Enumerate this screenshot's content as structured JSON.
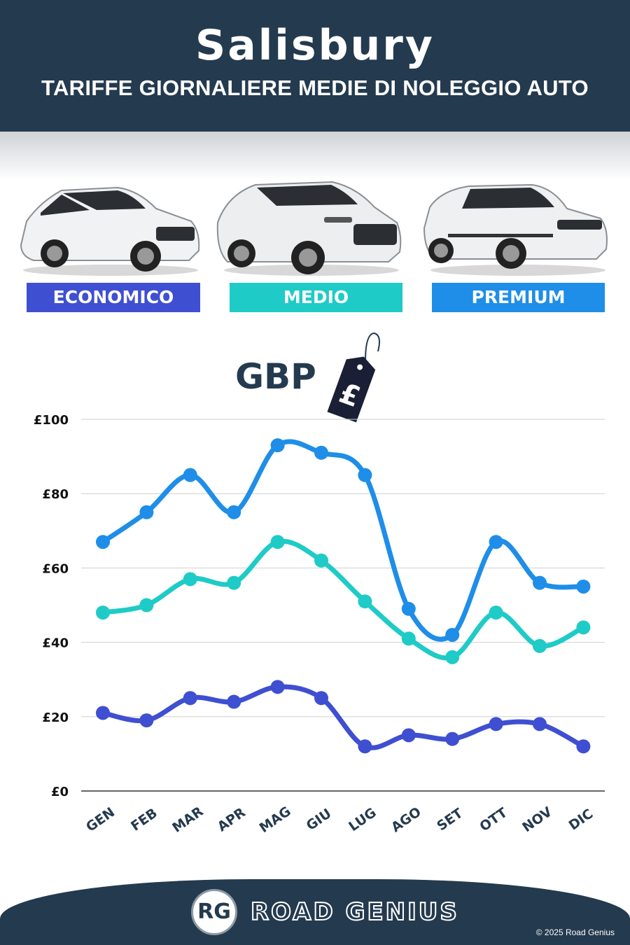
{
  "header": {
    "title": "Salisbury",
    "subtitle": "TARIFFE GIORNALIERE MEDIE DI NOLEGGIO AUTO"
  },
  "categories": [
    {
      "label": "ECONOMICO",
      "color": "#3f4fd1",
      "car_icon": "hatchback-car-icon"
    },
    {
      "label": "MEDIO",
      "color": "#1fcbc6",
      "car_icon": "suv-car-icon"
    },
    {
      "label": "PREMIUM",
      "color": "#1e8ee8",
      "car_icon": "luxury-suv-car-icon"
    }
  ],
  "currency": {
    "code": "GBP",
    "symbol": "£",
    "icon": "price-tag-icon"
  },
  "chart_data": {
    "type": "line",
    "categories": [
      "GEN",
      "FEB",
      "MAR",
      "APR",
      "MAG",
      "GIU",
      "LUG",
      "AGO",
      "SET",
      "OTT",
      "NOV",
      "DIC"
    ],
    "series": [
      {
        "name": "PREMIUM",
        "color": "#1e8ee8",
        "values": [
          67,
          75,
          85,
          75,
          93,
          91,
          85,
          49,
          42,
          67,
          56,
          55
        ]
      },
      {
        "name": "MEDIO",
        "color": "#1fcbc6",
        "values": [
          48,
          50,
          57,
          56,
          67,
          62,
          51,
          41,
          36,
          48,
          39,
          44
        ]
      },
      {
        "name": "ECONOMICO",
        "color": "#3f4fd1",
        "values": [
          21,
          19,
          25,
          24,
          28,
          25,
          12,
          15,
          14,
          18,
          18,
          12
        ]
      }
    ],
    "yticks": [
      "£0",
      "£20",
      "£40",
      "£60",
      "£80",
      "£100"
    ],
    "ylim": [
      0,
      100
    ],
    "grid": true
  },
  "footer": {
    "logo_initials": "RG",
    "brand": "ROAD GENIUS",
    "copyright": "© 2025 Road Genius"
  }
}
